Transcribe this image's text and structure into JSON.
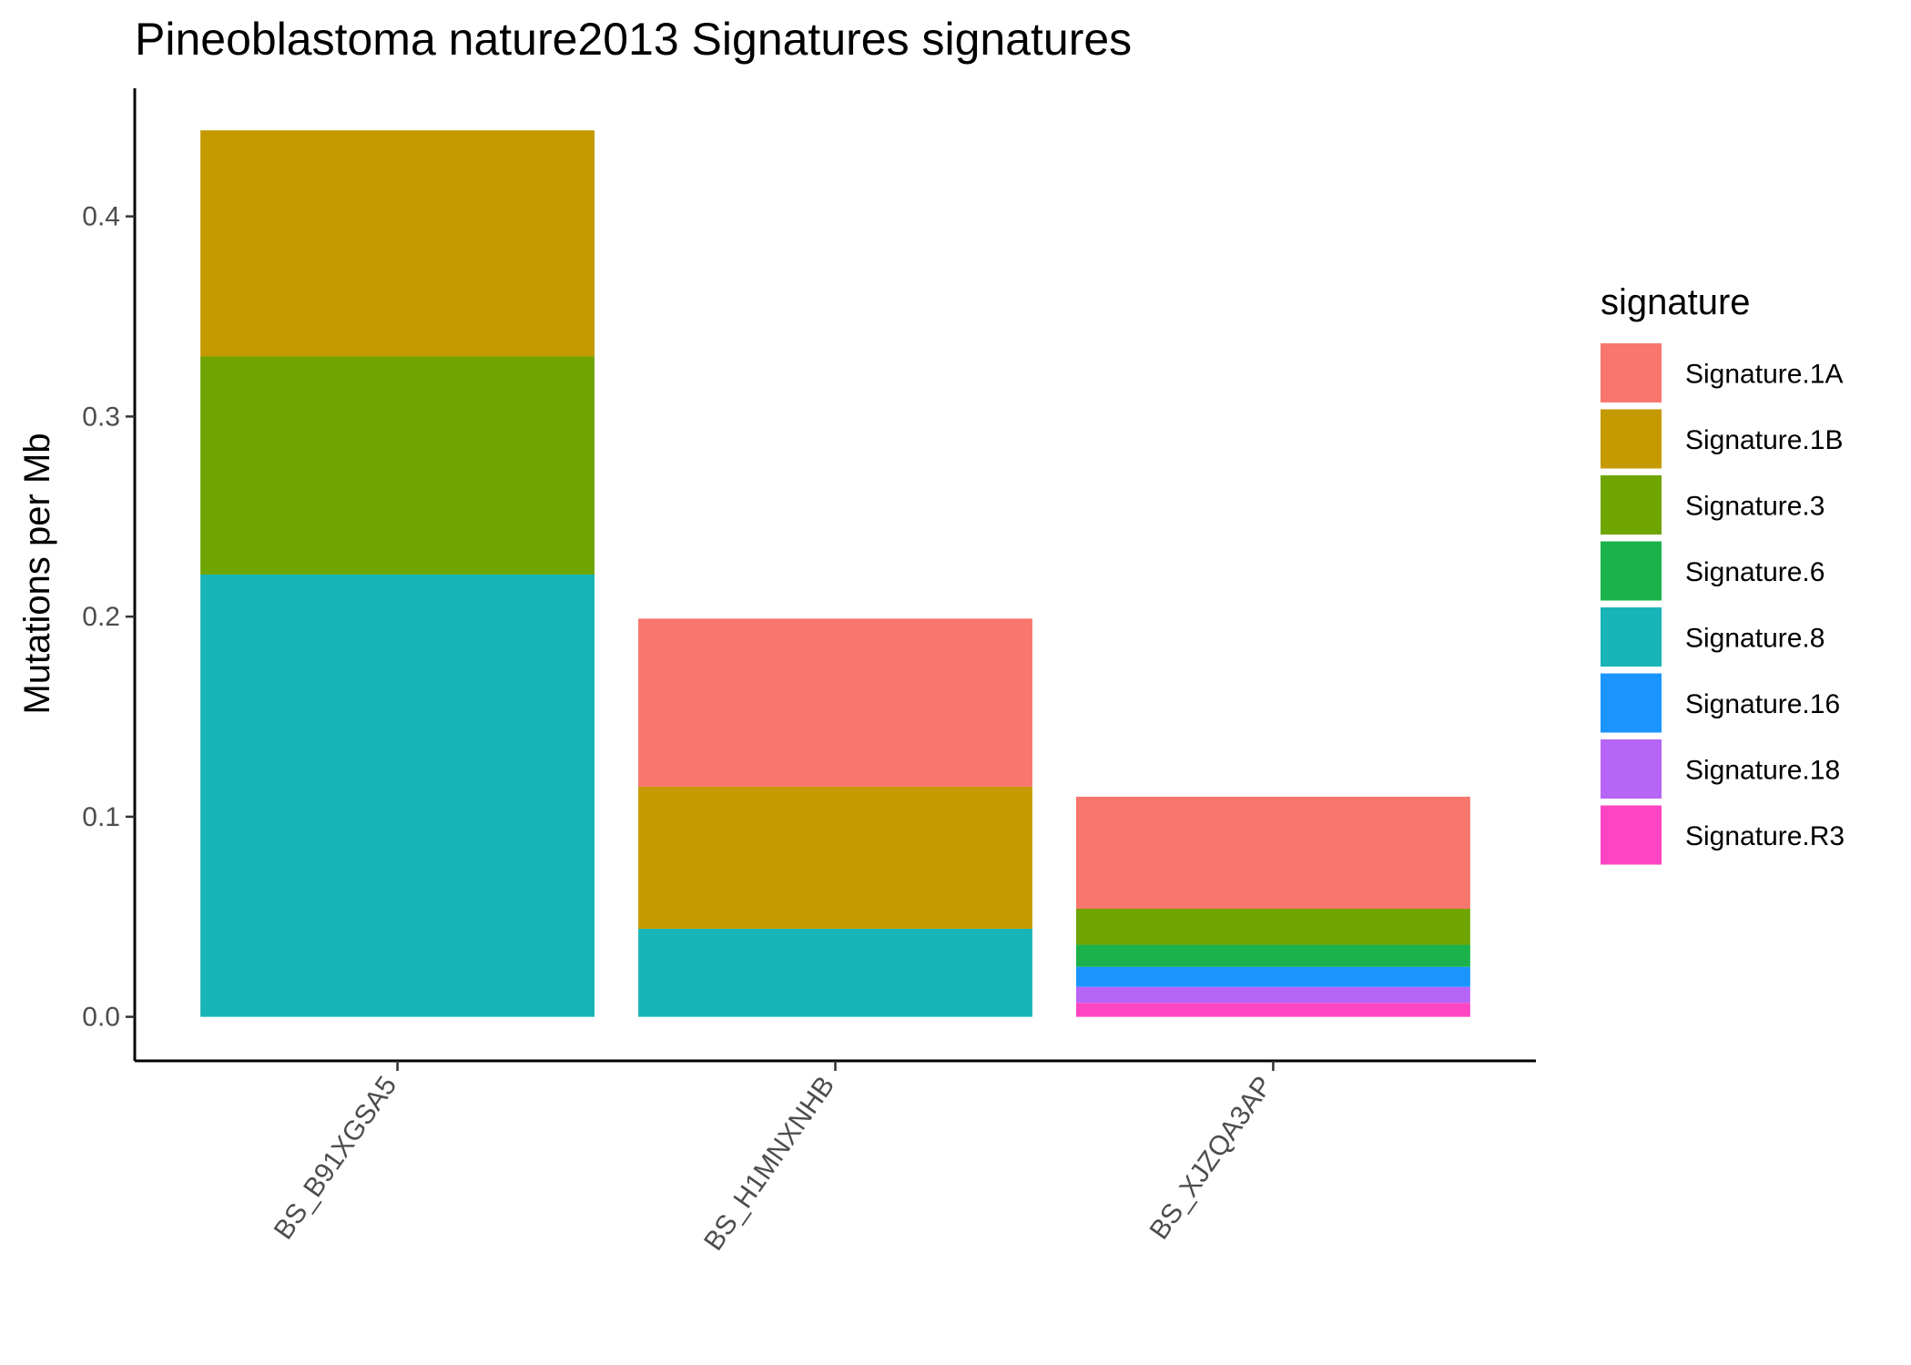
{
  "chart_data": {
    "type": "bar",
    "stacked": true,
    "title": "Pineoblastoma nature2013 Signatures signatures",
    "ylabel": "Mutations per Mb",
    "xlabel": "",
    "ylim": [
      -0.022,
      0.464
    ],
    "yticks": [
      "0.0",
      "0.1",
      "0.2",
      "0.3",
      "0.4"
    ],
    "categories": [
      "BS_B91XGSA5",
      "BS_H1MNXNHB",
      "BS_XJZQA3AP"
    ],
    "legend": {
      "title": "signature",
      "position": "right"
    },
    "grid": false,
    "series": [
      {
        "name": "Signature.1A",
        "color": "#F8766D",
        "values": [
          0,
          0.084,
          0.056
        ]
      },
      {
        "name": "Signature.1B",
        "color": "#C49A00",
        "values": [
          0.113,
          0.071,
          0
        ]
      },
      {
        "name": "Signature.3",
        "color": "#6EA500",
        "values": [
          0.109,
          0,
          0.018
        ]
      },
      {
        "name": "Signature.6",
        "color": "#1BB24B",
        "values": [
          0,
          0,
          0.011
        ]
      },
      {
        "name": "Signature.8",
        "color": "#19B4B8",
        "values": [
          0.221,
          0.044,
          0
        ]
      },
      {
        "name": "Signature.16",
        "color": "#1A95FF",
        "values": [
          0,
          0,
          0.01
        ]
      },
      {
        "name": "Signature.18",
        "color": "#B765F7",
        "values": [
          0,
          0,
          0.008
        ]
      },
      {
        "name": "Signature.R3",
        "color": "#FF45C2",
        "values": [
          0,
          0,
          0.007
        ]
      }
    ]
  }
}
